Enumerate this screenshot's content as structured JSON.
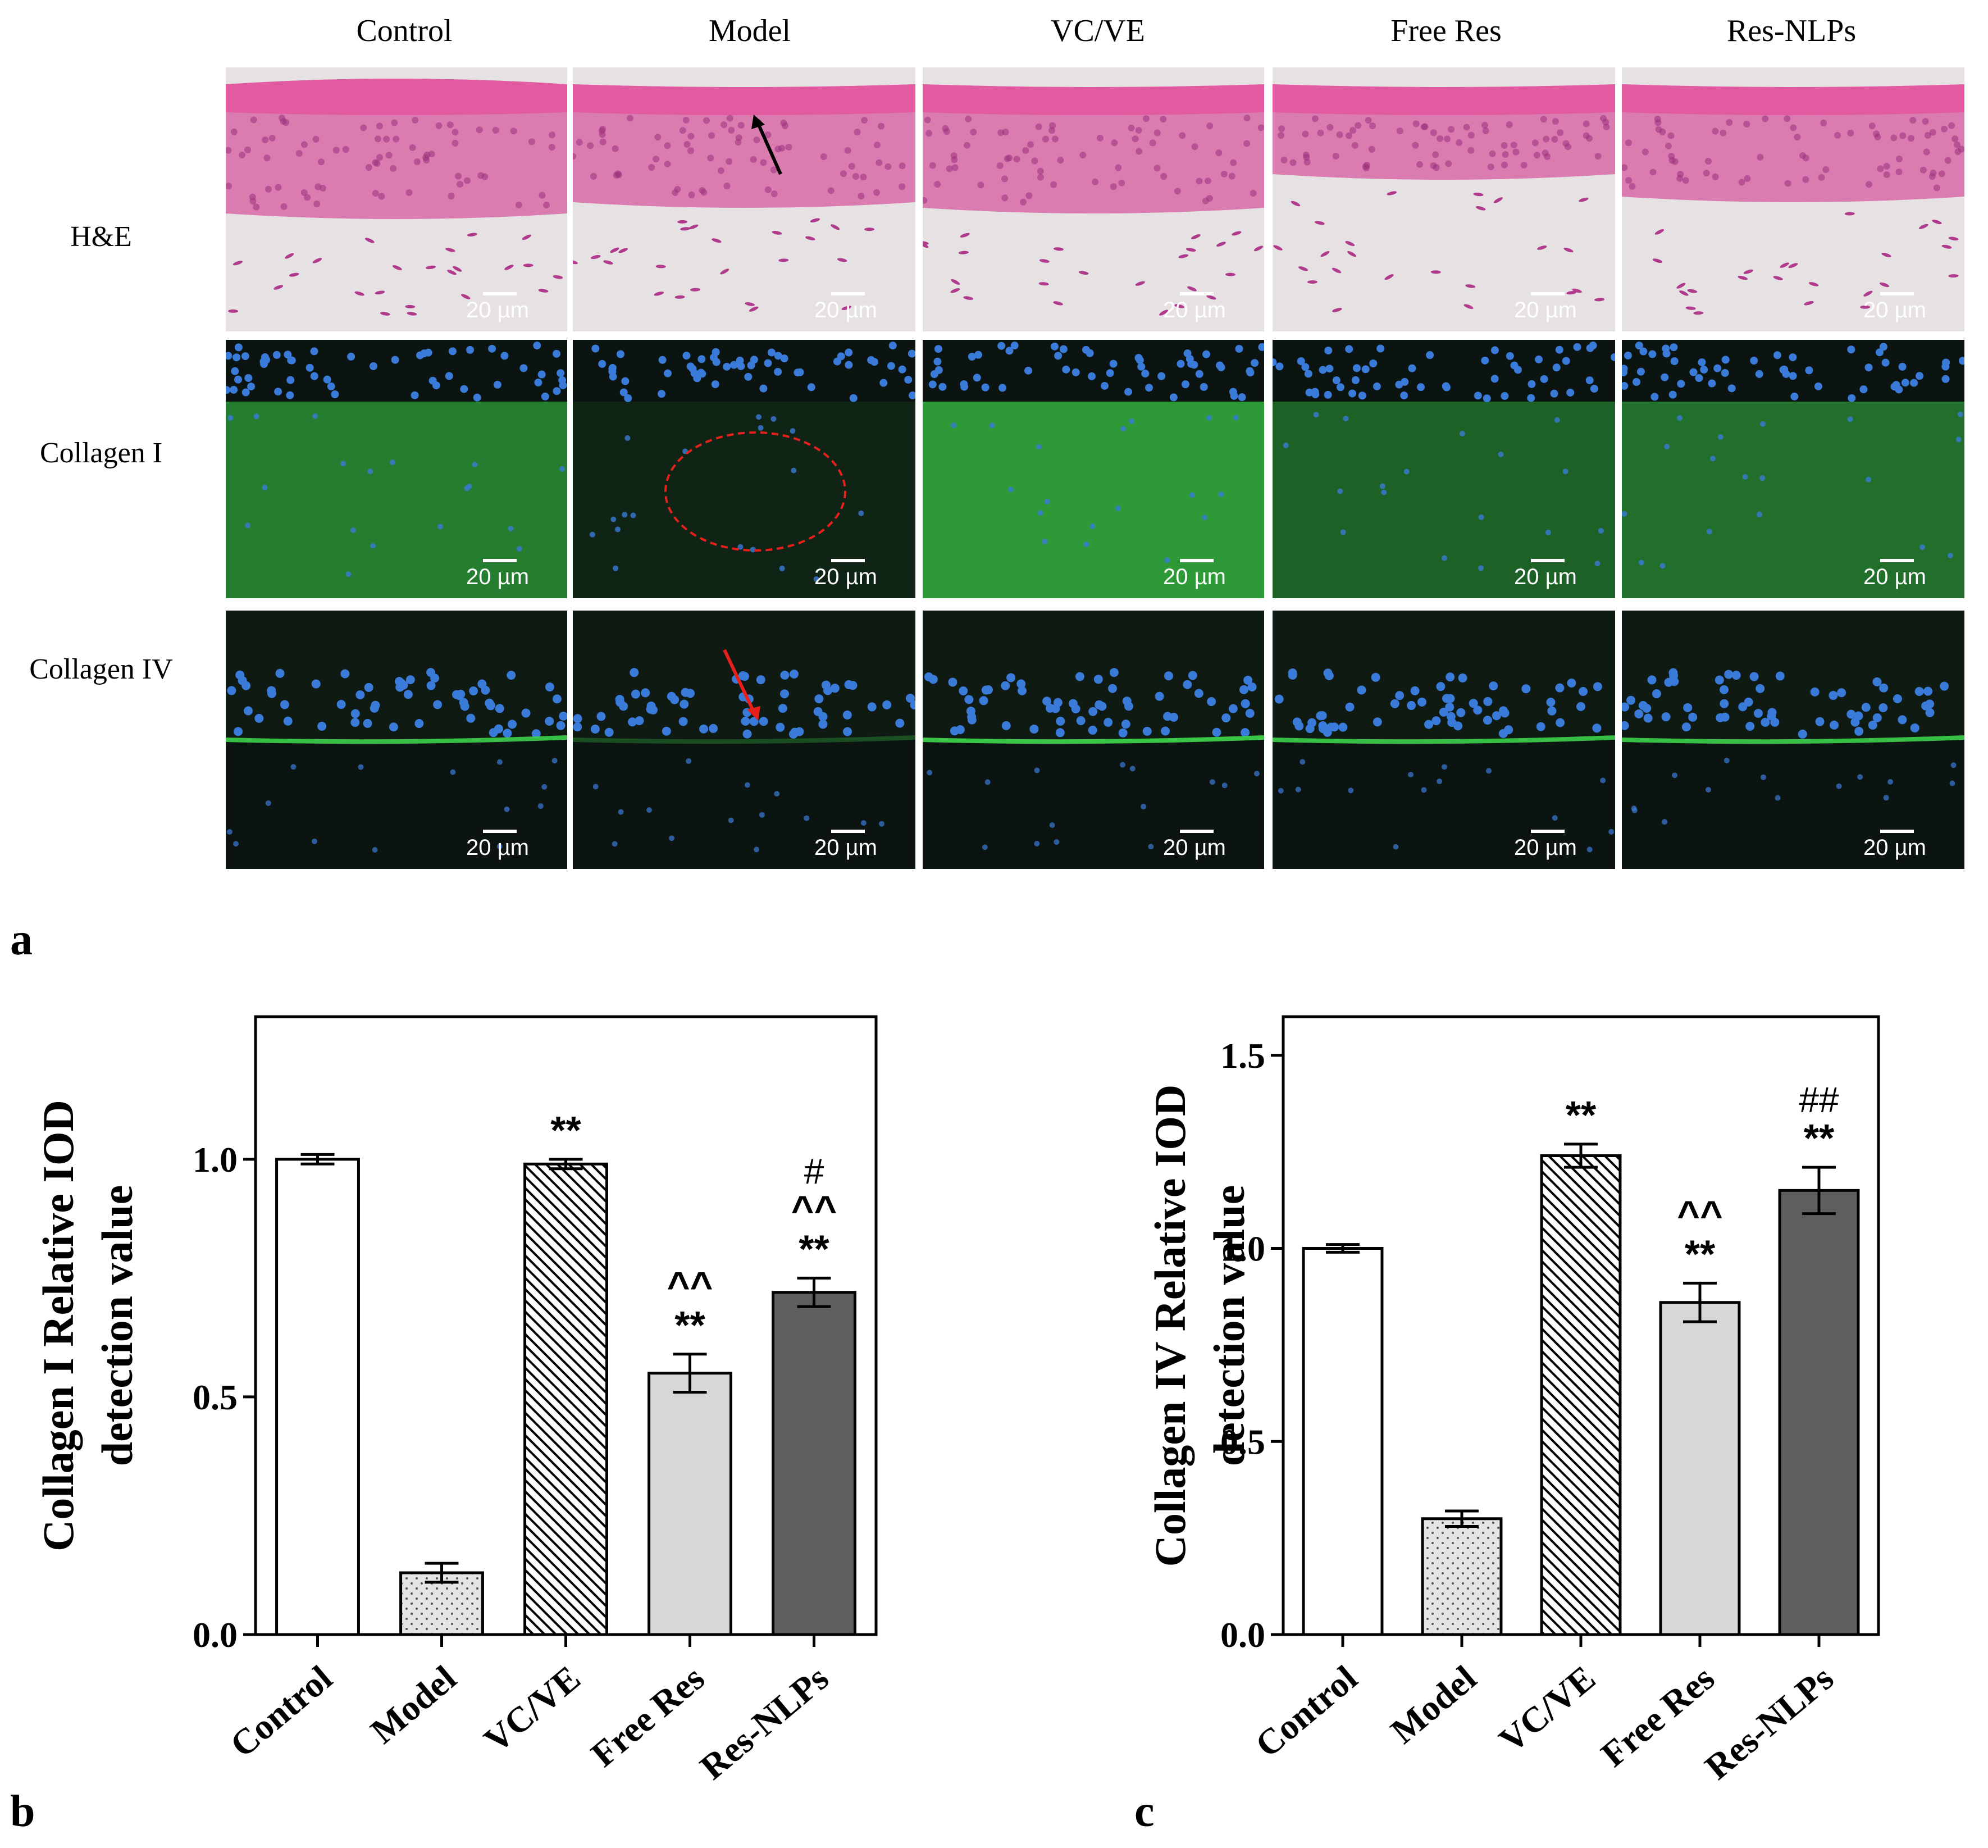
{
  "figure": {
    "panel_letters": {
      "a": "a",
      "b": "b",
      "c": "c"
    },
    "groups": [
      "Control",
      "Model",
      "VC/VE",
      "Free Res",
      "Res-NLPs"
    ],
    "micrograph_rows": [
      "H&E",
      "Collagen I",
      "Collagen IV"
    ],
    "scale_bar_label": "20 µm",
    "colors": {
      "he_pink": "#d86aa8",
      "he_stroma": "#e6e2e4",
      "fluor_green": "#2fa03a",
      "nuclei_blue": "#3a7ad8",
      "bg_dark": "#0b1410",
      "red_marker": "#e8201c",
      "black_marker": "#000000"
    },
    "markers": {
      "he_model_arrow": "black-arrow",
      "collagen1_model_circle": "red-dashed-circle",
      "collagen4_model_arrow": "red-arrow"
    }
  },
  "chart_data": [
    {
      "type": "bar",
      "panel": "b",
      "categories": [
        "Control",
        "Model",
        "VC/VE",
        "Free Res",
        "Res-NLPs"
      ],
      "values": [
        1.0,
        0.13,
        0.99,
        0.55,
        0.72
      ],
      "errors": [
        0.01,
        0.02,
        0.01,
        0.04,
        0.03
      ],
      "annotations": [
        [],
        [],
        [
          "**"
        ],
        [
          "**",
          "^^"
        ],
        [
          "**",
          "^^",
          "#"
        ]
      ],
      "patterns": [
        "white",
        "dots",
        "hatch",
        "light-gray",
        "dark-gray"
      ],
      "ylabel_line1": "Collagen I Relative IOD",
      "ylabel_line2": "detection value",
      "xlabel": "",
      "ylim": [
        0,
        1.3
      ],
      "yticks": [
        0.0,
        0.5,
        1.0
      ],
      "ytick_labels": [
        "0.0",
        "0.5",
        "1.0"
      ],
      "grid": false
    },
    {
      "type": "bar",
      "panel": "c",
      "categories": [
        "Control",
        "Model",
        "VC/VE",
        "Free Res",
        "Res-NLPs"
      ],
      "values": [
        1.0,
        0.3,
        1.24,
        0.86,
        1.15
      ],
      "errors": [
        0.01,
        0.02,
        0.03,
        0.05,
        0.06
      ],
      "annotations": [
        [],
        [],
        [
          "**"
        ],
        [
          "**",
          "^^"
        ],
        [
          "**",
          "##"
        ]
      ],
      "patterns": [
        "white",
        "dots",
        "hatch",
        "light-gray",
        "dark-gray"
      ],
      "ylabel_line1": "Collagen IV Relative IOD",
      "ylabel_line2": "detection value",
      "xlabel": "",
      "ylim": [
        0,
        1.6
      ],
      "yticks": [
        0.0,
        0.5,
        1.0,
        1.5
      ],
      "ytick_labels": [
        "0.0",
        "0.5",
        "1.0",
        "1.5"
      ],
      "grid": false
    }
  ]
}
